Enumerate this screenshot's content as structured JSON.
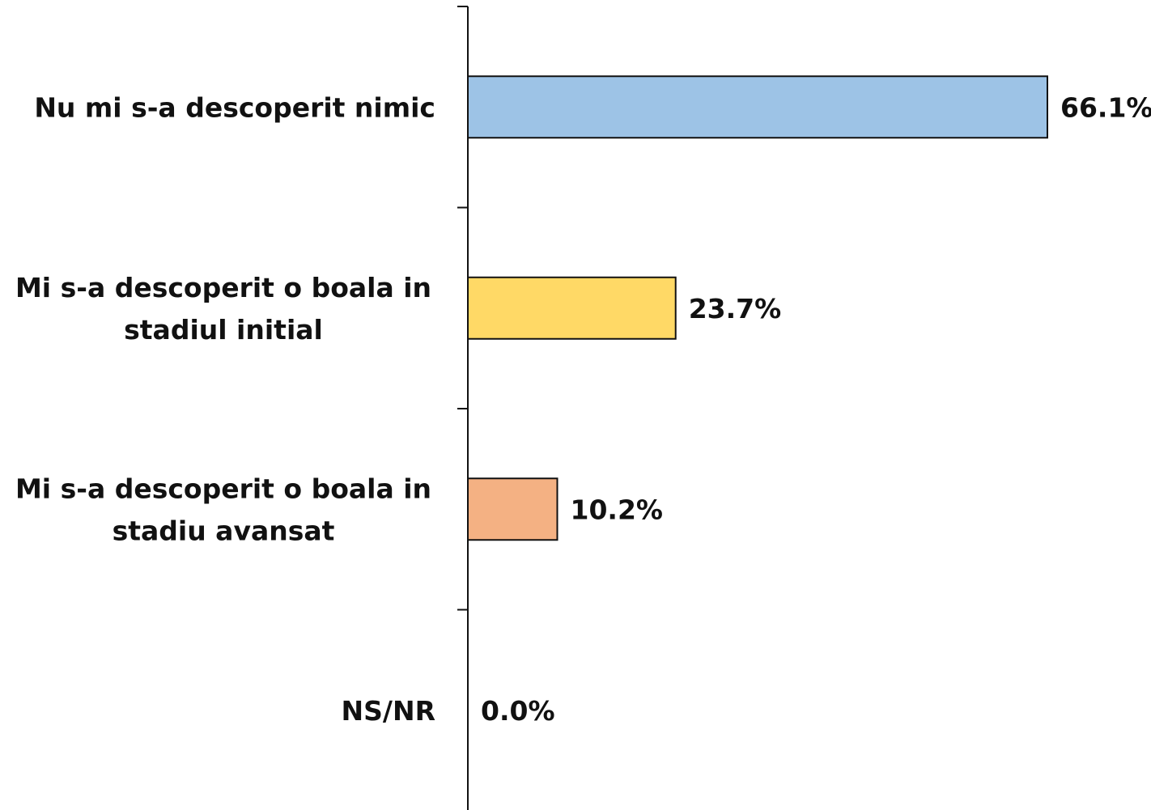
{
  "chart_data": {
    "type": "bar",
    "orientation": "horizontal",
    "categories": [
      [
        "Nu mi s-a descoperit nimic"
      ],
      [
        "Mi s-a descoperit o boala in",
        "stadiul initial"
      ],
      [
        "Mi s-a descoperit o boala in",
        "stadiu avansat"
      ],
      [
        "NS/NR"
      ]
    ],
    "values": [
      66.1,
      23.7,
      10.2,
      0.0
    ],
    "value_labels": [
      "66.1%",
      "23.7%",
      "10.2%",
      "0.0%"
    ],
    "colors": [
      "#9DC3E6",
      "#FFD966",
      "#F4B183",
      "#D9D9D9"
    ],
    "xlim": [
      0,
      66.1
    ],
    "grid": false,
    "legend": "none"
  }
}
